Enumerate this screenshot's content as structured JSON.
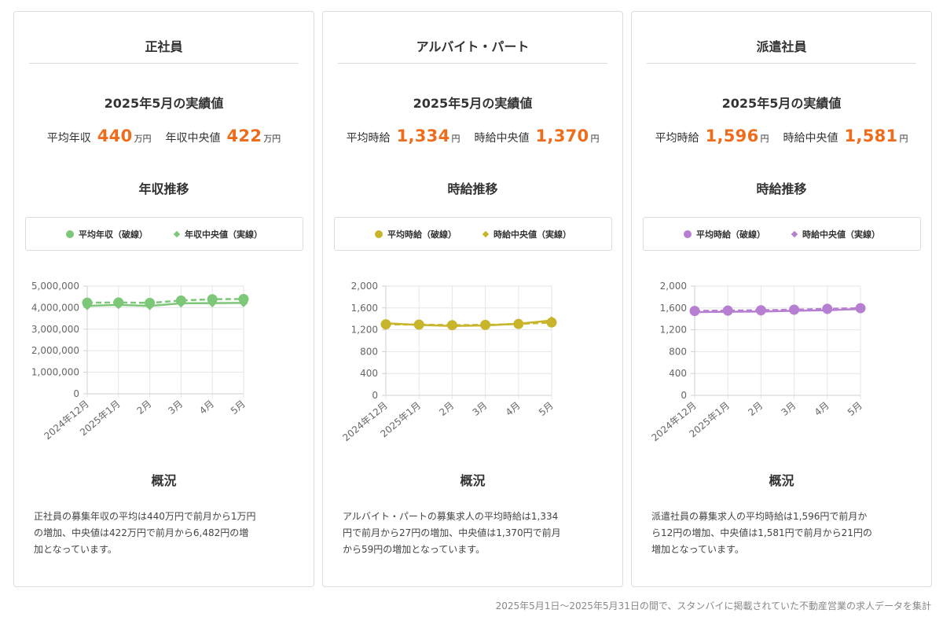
{
  "cards": [
    {
      "title": "正社員",
      "stats_title": "2025年5月の実績値",
      "stat1": {
        "label": "平均年収",
        "value": "440",
        "unit": "万円"
      },
      "stat2": {
        "label": "年収中央値",
        "value": "422",
        "unit": "万円"
      },
      "trend_title": "年収推移",
      "legend": {
        "avg": "平均年収（破線）",
        "median": "年収中央値（実線）"
      },
      "color": "#7dc778",
      "summary_title": "概況",
      "summary_lines": [
        "正社員の募集年収の平均は440万円で前月から1万円",
        "の増加、中央値は422万円で前月から6,482円の増",
        "加となっています。"
      ]
    },
    {
      "title": "アルバイト・パート",
      "stats_title": "2025年5月の実績値",
      "stat1": {
        "label": "平均時給",
        "value": "1,334",
        "unit": "円"
      },
      "stat2": {
        "label": "時給中央値",
        "value": "1,370",
        "unit": "円"
      },
      "trend_title": "時給推移",
      "legend": {
        "avg": "平均時給（破線）",
        "median": "時給中央値（実線）"
      },
      "color": "#c9b52c",
      "summary_title": "概況",
      "summary_lines": [
        "アルバイト・パートの募集求人の平均時給は1,334",
        "円で前月から27円の増加、中央値は1,370円で前月",
        "から59円の増加となっています。"
      ]
    },
    {
      "title": "派遣社員",
      "stats_title": "2025年5月の実績値",
      "stat1": {
        "label": "平均時給",
        "value": "1,596",
        "unit": "円"
      },
      "stat2": {
        "label": "時給中央値",
        "value": "1,581",
        "unit": "円"
      },
      "trend_title": "時給推移",
      "legend": {
        "avg": "平均時給（破線）",
        "median": "時給中央値（実線）"
      },
      "color": "#b77fd1",
      "summary_title": "概況",
      "summary_lines": [
        "派遣社員の募集求人の平均時給は1,596円で前月か",
        "ら12円の増加、中央値は1,581円で前月から21円の",
        "増加となっています。"
      ]
    }
  ],
  "chart_data": [
    {
      "type": "line",
      "categories": [
        "2024年12月",
        "2025年1月",
        "2月",
        "3月",
        "4月",
        "5月"
      ],
      "y_ticks": [
        "5,000,000",
        "4,000,000",
        "3,000,000",
        "2,000,000",
        "1,000,000",
        "0"
      ],
      "ylim": [
        0,
        5000000
      ],
      "grid": true,
      "series": [
        {
          "name": "平均年収（破線）",
          "style": "dashed",
          "marker": "circle",
          "values": [
            4230000,
            4240000,
            4220000,
            4330000,
            4390000,
            4400000
          ]
        },
        {
          "name": "年収中央値（実線）",
          "style": "solid",
          "marker": "diamond",
          "values": [
            4080000,
            4130000,
            4080000,
            4200000,
            4210000,
            4220000
          ]
        }
      ]
    },
    {
      "type": "line",
      "categories": [
        "2024年12月",
        "2025年1月",
        "2月",
        "3月",
        "4月",
        "5月"
      ],
      "y_ticks": [
        "2,000",
        "1,600",
        "1,200",
        "800",
        "400",
        "0"
      ],
      "ylim": [
        0,
        2000
      ],
      "grid": true,
      "series": [
        {
          "name": "平均時給（破線）",
          "style": "dashed",
          "marker": "circle",
          "values": [
            1300,
            1295,
            1285,
            1290,
            1307,
            1334
          ]
        },
        {
          "name": "時給中央値（実線）",
          "style": "solid",
          "marker": "diamond",
          "values": [
            1320,
            1290,
            1270,
            1280,
            1311,
            1370
          ]
        }
      ]
    },
    {
      "type": "line",
      "categories": [
        "2024年12月",
        "2025年1月",
        "2月",
        "3月",
        "4月",
        "5月"
      ],
      "y_ticks": [
        "2,000",
        "1,600",
        "1,200",
        "800",
        "400",
        "0"
      ],
      "ylim": [
        0,
        2000
      ],
      "grid": true,
      "series": [
        {
          "name": "平均時給（破線）",
          "style": "dashed",
          "marker": "circle",
          "values": [
            1545,
            1552,
            1558,
            1568,
            1584,
            1596
          ]
        },
        {
          "name": "時給中央値（実線）",
          "style": "solid",
          "marker": "diamond",
          "values": [
            1525,
            1530,
            1535,
            1548,
            1560,
            1581
          ]
        }
      ]
    }
  ],
  "footer": "2025年5月1日〜2025年5月31日の間で、スタンバイに掲載されていた不動産営業の求人データを集計"
}
